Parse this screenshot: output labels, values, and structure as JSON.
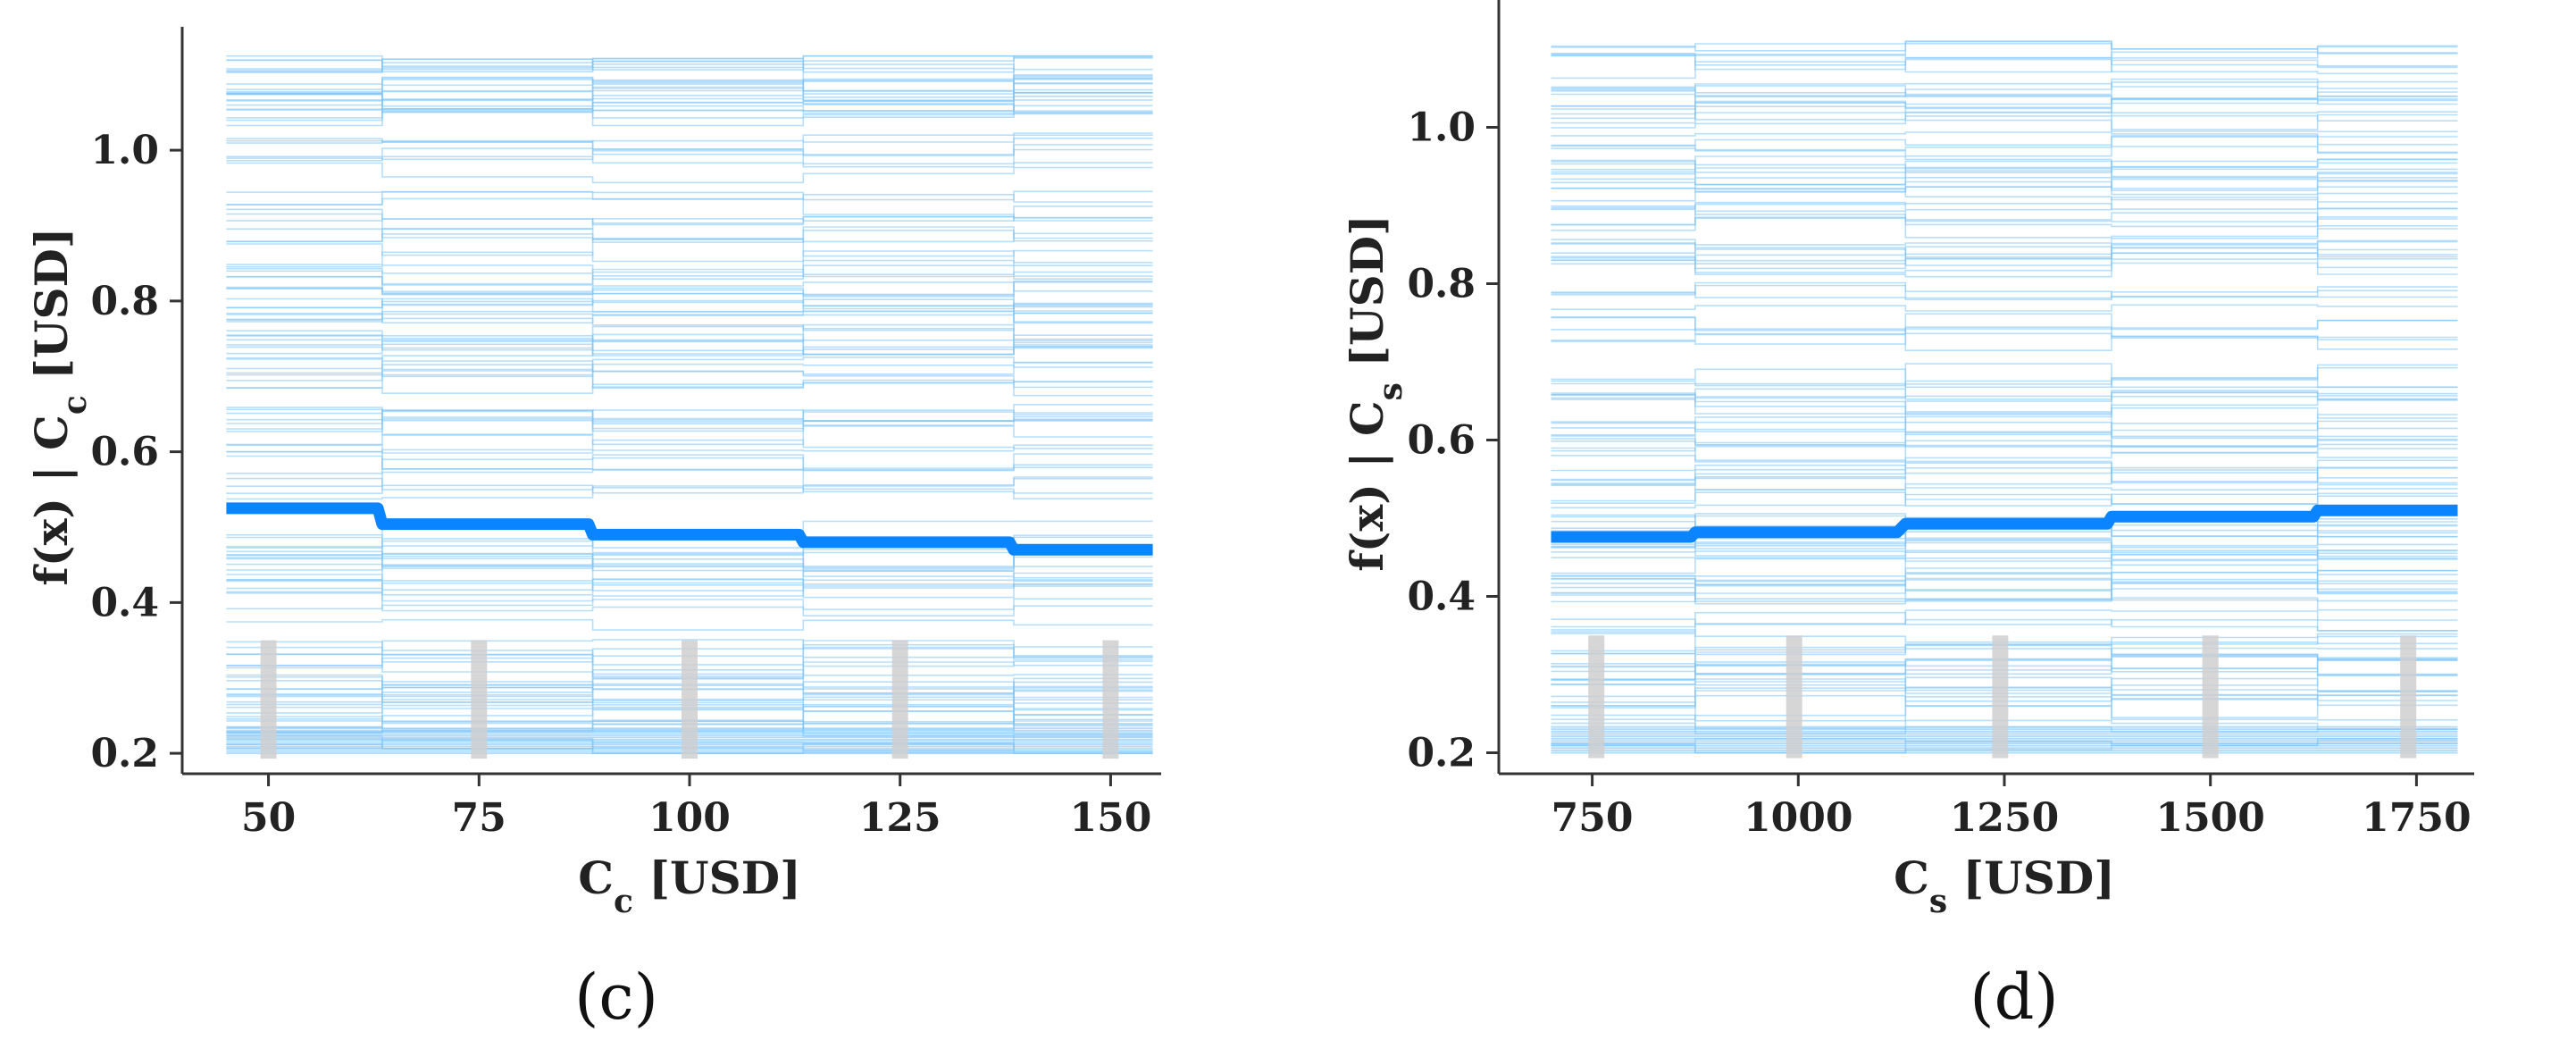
{
  "chart_data": [
    {
      "type": "line",
      "panel_label": "(c)",
      "xlabel": "C_c [USD]",
      "ylabel": "f(x)  | C_c [USD]",
      "xlim": [
        44,
        156
      ],
      "ylim": [
        0.18,
        1.14
      ],
      "xticks": [
        50,
        75,
        100,
        125,
        150
      ],
      "yticks": [
        0.2,
        0.4,
        0.6,
        0.8,
        1.0
      ],
      "xtick_labels": [
        "50",
        "75",
        "100",
        "125",
        "150"
      ],
      "ytick_labels": [
        "0.2",
        "0.4",
        "0.6",
        "0.8",
        "1.0"
      ],
      "grid": false,
      "series": [
        {
          "x": [
            45,
            63,
            63.5,
            88,
            88.5,
            113,
            113.5,
            138,
            138.5,
            155
          ],
          "values": [
            0.525,
            0.525,
            0.504,
            0.504,
            0.49,
            0.49,
            0.48,
            0.48,
            0.47,
            0.47
          ]
        }
      ],
      "rug_x": [
        50,
        75,
        100,
        125,
        150
      ],
      "step_edges": [
        45,
        63.5,
        88.5,
        113.5,
        138.5,
        155
      ]
    },
    {
      "type": "line",
      "panel_label": "(d)",
      "xlabel": "C_s [USD]",
      "ylabel": "f(x)  | C_s [USD]",
      "xlim": [
        680,
        1820
      ],
      "ylim": [
        0.18,
        1.14
      ],
      "xticks": [
        750,
        1000,
        1250,
        1500,
        1750
      ],
      "yticks": [
        0.2,
        0.4,
        0.6,
        0.8,
        1.0
      ],
      "xtick_labels": [
        "750",
        "1000",
        "1250",
        "1500",
        "1750"
      ],
      "ytick_labels": [
        "0.2",
        "0.4",
        "0.6",
        "0.8",
        "1.0"
      ],
      "grid": false,
      "series": [
        {
          "x": [
            700,
            870,
            875,
            1120,
            1130,
            1375,
            1380,
            1625,
            1630,
            1800
          ],
          "values": [
            0.476,
            0.476,
            0.482,
            0.482,
            0.493,
            0.493,
            0.502,
            0.502,
            0.51,
            0.51
          ]
        }
      ],
      "rug_x": [
        755,
        995,
        1245,
        1500,
        1740
      ],
      "step_edges": [
        700,
        875,
        1130,
        1380,
        1630,
        1800
      ]
    }
  ],
  "colors": {
    "pdp_line": "#0a84ff",
    "ice_lines": "#7cc4fb",
    "rug": "#cfcfcf",
    "axis": "#333333"
  }
}
